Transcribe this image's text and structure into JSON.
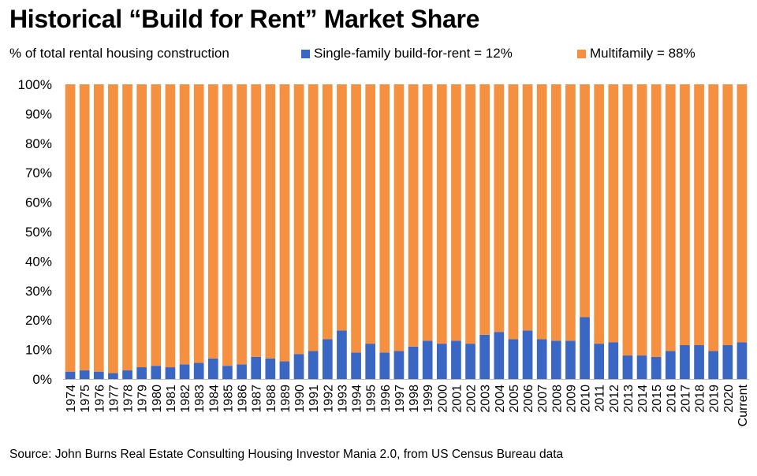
{
  "title": "Historical “Build for Rent” Market Share",
  "subtitle": "% of total rental housing construction",
  "source": "Source: John Burns Real Estate Consulting Housing Investor Mania 2.0, from US Census Bureau data",
  "chart_data": {
    "type": "bar",
    "stacked": true,
    "title": "Historical “Build for Rent” Market Share",
    "ylabel": "% of total rental housing construction",
    "xlabel": "",
    "ylim": [
      0,
      100
    ],
    "yticks": [
      "0%",
      "10%",
      "20%",
      "30%",
      "40%",
      "50%",
      "60%",
      "70%",
      "80%",
      "90%",
      "100%"
    ],
    "grid": false,
    "legend_position": "top",
    "categories": [
      "1974",
      "1975",
      "1976",
      "1977",
      "1978",
      "1979",
      "1980",
      "1981",
      "1982",
      "1983",
      "1984",
      "1985",
      "1986",
      "1987",
      "1988",
      "1989",
      "1990",
      "1991",
      "1992",
      "1993",
      "1994",
      "1995",
      "1996",
      "1997",
      "1998",
      "1999",
      "2000",
      "2001",
      "2002",
      "2003",
      "2004",
      "2005",
      "2006",
      "2007",
      "2008",
      "2009",
      "2010",
      "2011",
      "2012",
      "2013",
      "2014",
      "2015",
      "2016",
      "2017",
      "2018",
      "2019",
      "2020",
      "Current"
    ],
    "series": [
      {
        "name": "Single-family build-for-rent = 12%",
        "color": "#3a66c4",
        "values": [
          2.5,
          3,
          2.5,
          2,
          3,
          4,
          4.5,
          4,
          5,
          5.5,
          7,
          4.5,
          5,
          7.5,
          7,
          6,
          8.5,
          9.5,
          13.5,
          16.5,
          9,
          12,
          9,
          9.5,
          11,
          13,
          12,
          13,
          12,
          15,
          16,
          13.5,
          16.5,
          13.5,
          13,
          13,
          21,
          12,
          12.5,
          8,
          8,
          7.5,
          9.5,
          11.5,
          11.5,
          9.5,
          11.5,
          12.5
        ]
      },
      {
        "name": "Multifamily = 88%",
        "color": "#f4903f",
        "values": [
          97.5,
          97,
          97.5,
          98,
          97,
          96,
          95.5,
          96,
          95,
          94.5,
          93,
          95.5,
          95,
          92.5,
          93,
          94,
          91.5,
          90.5,
          86.5,
          83.5,
          91,
          88,
          91,
          90.5,
          89,
          87,
          88,
          87,
          88,
          85,
          84,
          86.5,
          83.5,
          86.5,
          87,
          87,
          79,
          88,
          87.5,
          92,
          92,
          92.5,
          90.5,
          88.5,
          88.5,
          90.5,
          88.5,
          87.5
        ]
      }
    ]
  }
}
